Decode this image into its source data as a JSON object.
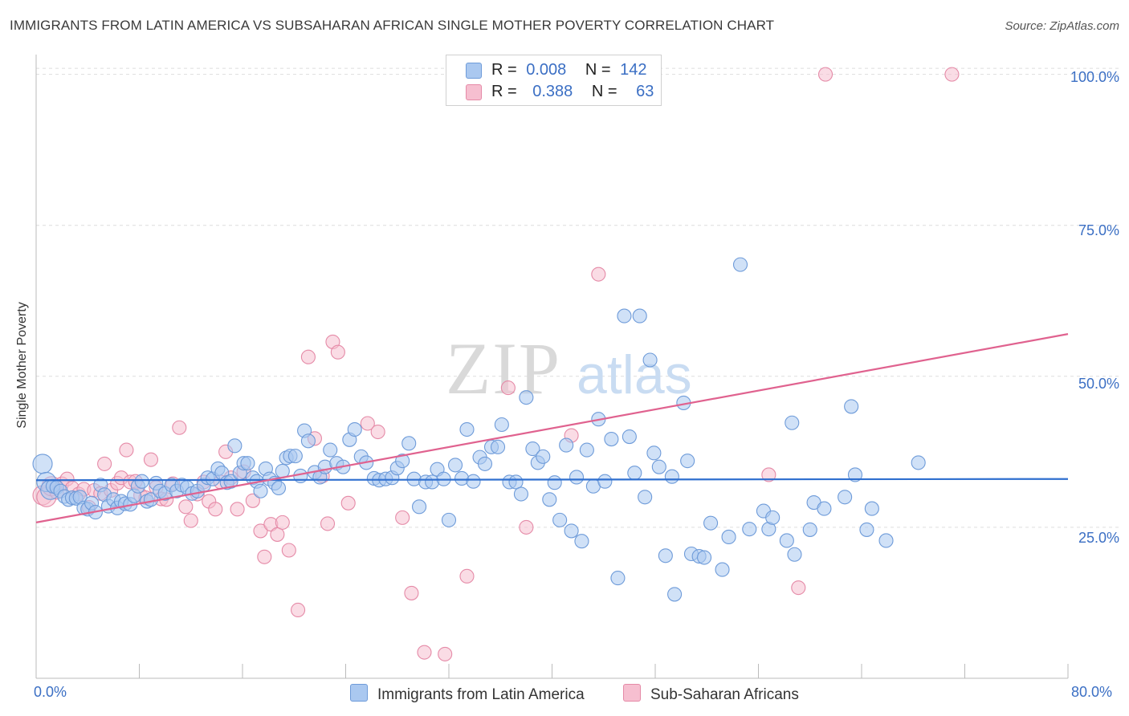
{
  "title": "IMMIGRANTS FROM LATIN AMERICA VS SUBSAHARAN AFRICAN SINGLE MOTHER POVERTY CORRELATION CHART",
  "source": "Source: ZipAtlas.com",
  "watermark": {
    "zip": "ZIP",
    "atlas": "atlas"
  },
  "legend_top": [
    {
      "r_label": "R =",
      "r_value": "0.008",
      "n_label": "N =",
      "n_value": "142"
    },
    {
      "r_label": "R =",
      "r_value": "0.388",
      "n_label": "N =",
      "n_value": "63"
    }
  ],
  "legend_bottom": [
    "Immigrants from Latin America",
    "Sub-Saharan Africans"
  ],
  "colors": {
    "blue_fill": "#aac8f0",
    "blue_stroke": "#6e9bd9",
    "blue_line": "#2f6fcf",
    "pink_fill": "#f6bfd0",
    "pink_stroke": "#e58aa7",
    "pink_line": "#e0628f",
    "tick_text": "#3b6fc4",
    "grid": "#dedede"
  },
  "chart_data": {
    "type": "scatter",
    "title": "IMMIGRANTS FROM LATIN AMERICA VS SUBSAHARAN AFRICAN SINGLE MOTHER POVERTY CORRELATION CHART",
    "xlabel": "",
    "ylabel": "Single Mother Poverty",
    "xlim": [
      0,
      80
    ],
    "ylim": [
      0,
      105
    ],
    "x_tick_labels": [
      "0.0%",
      "80.0%"
    ],
    "y_ticks": [
      25,
      50,
      75,
      100
    ],
    "y_tick_labels": [
      "25.0%",
      "50.0%",
      "75.0%",
      "100.0%"
    ],
    "grid": "horizontal dashed",
    "series": [
      {
        "name": "Immigrants from Latin America",
        "color": "#6e9bd9",
        "trend": {
          "x": [
            0,
            80
          ],
          "y": [
            32.8,
            33.0
          ]
        },
        "points": [
          [
            0.5,
            35.5
          ],
          [
            0.8,
            32.5
          ],
          [
            1.1,
            31.2
          ],
          [
            1.3,
            31.8
          ],
          [
            1.6,
            31.6
          ],
          [
            1.9,
            31.0
          ],
          [
            2.2,
            30.1
          ],
          [
            2.5,
            29.6
          ],
          [
            2.8,
            29.9
          ],
          [
            3.1,
            29.8
          ],
          [
            3.4,
            30.0
          ],
          [
            3.7,
            28.2
          ],
          [
            4.0,
            28.0
          ],
          [
            4.3,
            29.0
          ],
          [
            4.6,
            27.5
          ],
          [
            5.0,
            32.0
          ],
          [
            5.3,
            30.4
          ],
          [
            5.6,
            28.5
          ],
          [
            6.0,
            29.6
          ],
          [
            6.3,
            28.2
          ],
          [
            6.6,
            29.3
          ],
          [
            6.9,
            28.9
          ],
          [
            7.3,
            28.8
          ],
          [
            7.6,
            30.2
          ],
          [
            7.9,
            31.8
          ],
          [
            8.2,
            32.6
          ],
          [
            8.6,
            29.3
          ],
          [
            8.9,
            29.6
          ],
          [
            9.3,
            32.3
          ],
          [
            9.6,
            31.0
          ],
          [
            10.0,
            30.6
          ],
          [
            10.5,
            32.0
          ],
          [
            10.9,
            31.0
          ],
          [
            11.3,
            32.0
          ],
          [
            11.7,
            31.6
          ],
          [
            12.1,
            30.6
          ],
          [
            12.5,
            31.0
          ],
          [
            13.0,
            32.0
          ],
          [
            13.3,
            33.2
          ],
          [
            13.7,
            33.0
          ],
          [
            14.1,
            34.7
          ],
          [
            14.4,
            34.0
          ],
          [
            14.8,
            32.4
          ],
          [
            15.1,
            32.6
          ],
          [
            15.4,
            38.5
          ],
          [
            15.8,
            34.0
          ],
          [
            16.1,
            35.6
          ],
          [
            16.4,
            35.6
          ],
          [
            16.8,
            33.2
          ],
          [
            17.1,
            32.6
          ],
          [
            17.4,
            31.0
          ],
          [
            17.8,
            34.7
          ],
          [
            18.1,
            33.0
          ],
          [
            18.5,
            32.3
          ],
          [
            18.8,
            31.5
          ],
          [
            19.1,
            34.3
          ],
          [
            19.4,
            36.5
          ],
          [
            19.7,
            36.8
          ],
          [
            20.1,
            36.8
          ],
          [
            20.5,
            33.5
          ],
          [
            20.8,
            41.0
          ],
          [
            21.1,
            39.3
          ],
          [
            21.6,
            34.1
          ],
          [
            22.0,
            33.3
          ],
          [
            22.4,
            35.0
          ],
          [
            22.8,
            37.8
          ],
          [
            23.3,
            35.6
          ],
          [
            23.8,
            35.0
          ],
          [
            24.3,
            39.5
          ],
          [
            24.7,
            41.2
          ],
          [
            25.2,
            36.7
          ],
          [
            25.6,
            35.7
          ],
          [
            26.2,
            33.1
          ],
          [
            26.6,
            32.8
          ],
          [
            27.1,
            33.0
          ],
          [
            27.6,
            33.2
          ],
          [
            28.0,
            34.8
          ],
          [
            28.4,
            36.0
          ],
          [
            28.9,
            38.9
          ],
          [
            29.3,
            33.0
          ],
          [
            29.7,
            28.4
          ],
          [
            30.2,
            32.5
          ],
          [
            30.7,
            32.5
          ],
          [
            31.1,
            34.6
          ],
          [
            31.6,
            33.0
          ],
          [
            32.0,
            26.2
          ],
          [
            32.5,
            35.3
          ],
          [
            33.0,
            33.1
          ],
          [
            33.4,
            41.2
          ],
          [
            33.9,
            32.6
          ],
          [
            34.4,
            36.6
          ],
          [
            34.8,
            35.5
          ],
          [
            35.3,
            38.3
          ],
          [
            35.8,
            38.3
          ],
          [
            36.1,
            42.0
          ],
          [
            36.7,
            32.5
          ],
          [
            37.2,
            32.5
          ],
          [
            37.6,
            30.5
          ],
          [
            38.0,
            46.5
          ],
          [
            38.5,
            38.0
          ],
          [
            38.9,
            35.7
          ],
          [
            39.3,
            36.7
          ],
          [
            39.8,
            29.6
          ],
          [
            40.2,
            32.4
          ],
          [
            40.6,
            26.2
          ],
          [
            41.1,
            38.6
          ],
          [
            41.5,
            24.4
          ],
          [
            41.9,
            33.3
          ],
          [
            42.3,
            22.7
          ],
          [
            42.7,
            37.8
          ],
          [
            43.2,
            31.8
          ],
          [
            43.6,
            42.9
          ],
          [
            44.1,
            32.6
          ],
          [
            44.6,
            39.6
          ],
          [
            45.1,
            16.6
          ],
          [
            45.6,
            60.0
          ],
          [
            46.0,
            40.0
          ],
          [
            46.4,
            34.0
          ],
          [
            46.8,
            60.0
          ],
          [
            47.2,
            30.0
          ],
          [
            47.6,
            52.7
          ],
          [
            47.9,
            37.3
          ],
          [
            48.3,
            35.0
          ],
          [
            48.8,
            20.3
          ],
          [
            49.3,
            33.4
          ],
          [
            49.5,
            13.9
          ],
          [
            50.2,
            45.6
          ],
          [
            50.5,
            36.0
          ],
          [
            50.8,
            20.6
          ],
          [
            51.4,
            20.2
          ],
          [
            51.8,
            20.0
          ],
          [
            52.3,
            25.7
          ],
          [
            53.2,
            18.0
          ],
          [
            53.7,
            23.4
          ],
          [
            54.6,
            68.5
          ],
          [
            55.3,
            24.7
          ],
          [
            56.4,
            27.7
          ],
          [
            56.8,
            24.7
          ],
          [
            57.1,
            26.6
          ],
          [
            58.2,
            22.8
          ],
          [
            58.6,
            42.3
          ],
          [
            58.8,
            20.5
          ],
          [
            60.0,
            24.6
          ],
          [
            60.3,
            29.1
          ],
          [
            61.1,
            28.1
          ],
          [
            62.7,
            30.0
          ],
          [
            63.2,
            45.0
          ],
          [
            63.5,
            33.7
          ],
          [
            64.4,
            24.6
          ],
          [
            64.8,
            28.1
          ],
          [
            65.9,
            22.8
          ],
          [
            68.4,
            35.7
          ]
        ]
      },
      {
        "name": "Sub-Saharan Africans",
        "color": "#e58aa7",
        "trend": {
          "x": [
            0,
            80
          ],
          "y": [
            25.8,
            57.0
          ]
        },
        "points": [
          [
            0.5,
            30.3
          ],
          [
            0.8,
            30.0
          ],
          [
            1.2,
            31.8
          ],
          [
            1.6,
            30.8
          ],
          [
            2.0,
            32.2
          ],
          [
            2.4,
            33.0
          ],
          [
            2.8,
            31.5
          ],
          [
            3.3,
            30.5
          ],
          [
            3.7,
            31.3
          ],
          [
            4.1,
            28.3
          ],
          [
            4.5,
            31.1
          ],
          [
            5.0,
            30.6
          ],
          [
            5.3,
            35.5
          ],
          [
            5.8,
            31.1
          ],
          [
            6.3,
            32.3
          ],
          [
            6.6,
            33.2
          ],
          [
            7.0,
            37.8
          ],
          [
            7.3,
            32.5
          ],
          [
            7.7,
            32.6
          ],
          [
            8.1,
            30.3
          ],
          [
            8.5,
            29.9
          ],
          [
            8.9,
            36.2
          ],
          [
            9.3,
            31.6
          ],
          [
            9.7,
            29.7
          ],
          [
            10.1,
            29.6
          ],
          [
            10.6,
            32.2
          ],
          [
            11.1,
            41.5
          ],
          [
            11.6,
            28.4
          ],
          [
            12.0,
            26.1
          ],
          [
            12.5,
            30.5
          ],
          [
            13.0,
            32.5
          ],
          [
            13.4,
            29.3
          ],
          [
            13.9,
            28.0
          ],
          [
            14.3,
            32.5
          ],
          [
            14.7,
            37.5
          ],
          [
            15.1,
            33.2
          ],
          [
            15.6,
            28.0
          ],
          [
            16.1,
            34.2
          ],
          [
            16.8,
            29.4
          ],
          [
            17.4,
            24.4
          ],
          [
            17.7,
            20.1
          ],
          [
            18.2,
            25.5
          ],
          [
            18.7,
            23.8
          ],
          [
            19.1,
            25.8
          ],
          [
            19.6,
            21.2
          ],
          [
            20.3,
            11.3
          ],
          [
            21.1,
            53.2
          ],
          [
            21.6,
            39.7
          ],
          [
            22.2,
            33.5
          ],
          [
            22.6,
            25.6
          ],
          [
            23.0,
            55.7
          ],
          [
            23.4,
            54.0
          ],
          [
            24.2,
            29.0
          ],
          [
            25.7,
            42.2
          ],
          [
            26.5,
            40.8
          ],
          [
            28.4,
            26.6
          ],
          [
            29.1,
            14.1
          ],
          [
            30.1,
            4.3
          ],
          [
            31.7,
            4.0
          ],
          [
            33.4,
            16.9
          ],
          [
            36.6,
            48.1
          ],
          [
            38.0,
            25.0
          ],
          [
            41.5,
            40.2
          ],
          [
            43.6,
            66.9
          ],
          [
            56.8,
            33.7
          ],
          [
            59.1,
            15.0
          ],
          [
            61.2,
            100.0
          ],
          [
            71.0,
            100.0
          ]
        ]
      }
    ]
  }
}
